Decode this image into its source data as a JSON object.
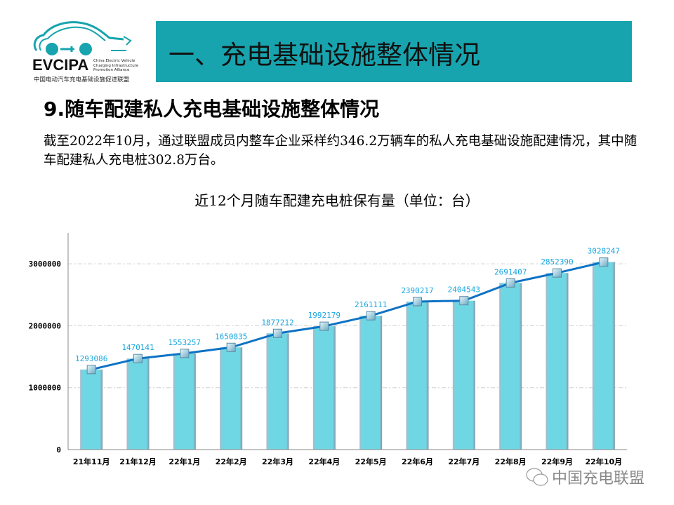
{
  "logo": {
    "word": "EVCIPA",
    "subtitle_en": "China Electric Vehicle Charging Infrastructure Promotion Alliance",
    "subtitle_cn": "中国电动汽车充电基础设施促进联盟"
  },
  "banner": {
    "title": "一、充电基础设施整体情况"
  },
  "section": {
    "heading": "9.随车配建私人充电基础设施整体情况",
    "paragraph": "截至2022年10月，通过联盟成员内整车企业采样约346.2万辆车的私人充电基础设施配建情况，其中随车配建私人充电桩302.8万台。"
  },
  "watermark": {
    "text": "中国充电联盟",
    "icon": "wechat-icon"
  },
  "colors": {
    "banner": "#17a4ae",
    "bar": "#6fd7e4",
    "line": "#0e72c4",
    "label": "#18a6e0"
  },
  "chart_data": {
    "type": "bar+line",
    "title": "近12个月随车配建充电桩保有量（单位：台）",
    "categories": [
      "21年11月",
      "21年12月",
      "22年1月",
      "22年2月",
      "22年3月",
      "22年4月",
      "22年5月",
      "22年6月",
      "22年7月",
      "22年8月",
      "22年9月",
      "22年10月"
    ],
    "values": [
      1293086,
      1470141,
      1553257,
      1650835,
      1877212,
      1992179,
      2161111,
      2390217,
      2404543,
      2691407,
      2852390,
      3028247
    ],
    "yticks": [
      0,
      1000000,
      2000000,
      3000000
    ],
    "ylim": [
      0,
      3500000
    ],
    "grid": true,
    "legend": "none"
  }
}
